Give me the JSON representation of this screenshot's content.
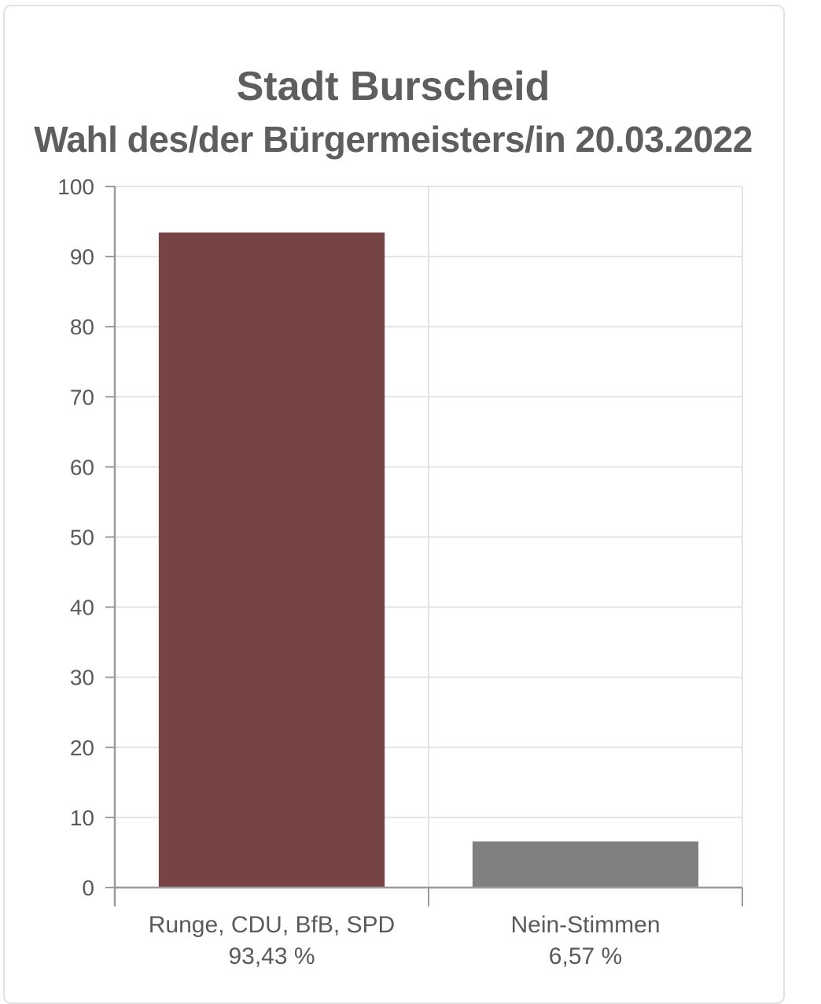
{
  "header": {
    "title": "Stadt Burscheid",
    "subtitle": "Wahl des/der Bürgermeisters/in 20.03.2022"
  },
  "chart_data": {
    "type": "bar",
    "title": "Stadt Burscheid",
    "subtitle": "Wahl des/der Bürgermeisters/in 20.03.2022",
    "xlabel": "",
    "ylabel": "",
    "ylim": [
      0,
      100
    ],
    "yticks": [
      "0",
      "10",
      "20",
      "30",
      "40",
      "50",
      "60",
      "70",
      "80",
      "90",
      "100"
    ],
    "grid": true,
    "legend": "none",
    "categories": [
      "Runge, CDU, BfB, SPD",
      "Nein-Stimmen"
    ],
    "category_values_text": [
      "93,43 %",
      "6,57 %"
    ],
    "values": [
      93.43,
      6.57
    ],
    "colors": [
      "#774446",
      "#808080"
    ],
    "grid_color": "#e3e3e3",
    "axis_color": "#9a9a9a",
    "tick_text_color": "#5a5a5a"
  }
}
